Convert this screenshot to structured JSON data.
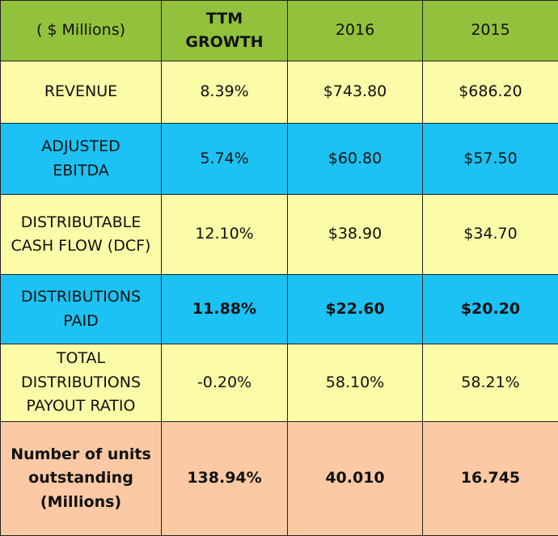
{
  "header": {
    "col0": "( $ Millions)",
    "col1_line1": "TTM",
    "col1_line2": "GROWTH",
    "col2": "2016",
    "col3": "2015"
  },
  "rows": [
    {
      "label_lines": [
        "REVENUE"
      ],
      "ttm_growth": "8.39%",
      "y2016": "$743.80",
      "y2015": "$686.20",
      "color": "#fbfba8"
    },
    {
      "label_lines": [
        "ADJUSTED",
        "EBITDA"
      ],
      "ttm_growth": "5.74%",
      "y2016": "$60.80",
      "y2015": "$57.50",
      "color": "#1cc2f3"
    },
    {
      "label_lines": [
        "DISTRIBUTABLE",
        "CASH FLOW (DCF)"
      ],
      "ttm_growth": "12.10%",
      "y2016": "$38.90",
      "y2015": "$34.70",
      "color": "#fbfba8"
    },
    {
      "label_lines": [
        "DISTRIBUTIONS",
        "PAID"
      ],
      "ttm_growth": "11.88%",
      "y2016": "$22.60",
      "y2015": "$20.20",
      "color": "#1cc2f3"
    },
    {
      "label_lines": [
        "TOTAL",
        "DISTRIBUTIONS",
        "PAYOUT RATIO"
      ],
      "ttm_growth": "-0.20%",
      "y2016": "58.10%",
      "y2015": "58.21%",
      "color": "#fbfba8"
    },
    {
      "label_lines": [
        "Number of units",
        "outstanding",
        "(Millions)"
      ],
      "ttm_growth": "138.94%",
      "y2016": "40.010",
      "y2015": "16.745",
      "color": "#fbc9a4"
    }
  ],
  "colors": {
    "header": "#92c13c",
    "yellow": "#fbfba8",
    "blue": "#1cc2f3",
    "peach": "#fbc9a4"
  }
}
